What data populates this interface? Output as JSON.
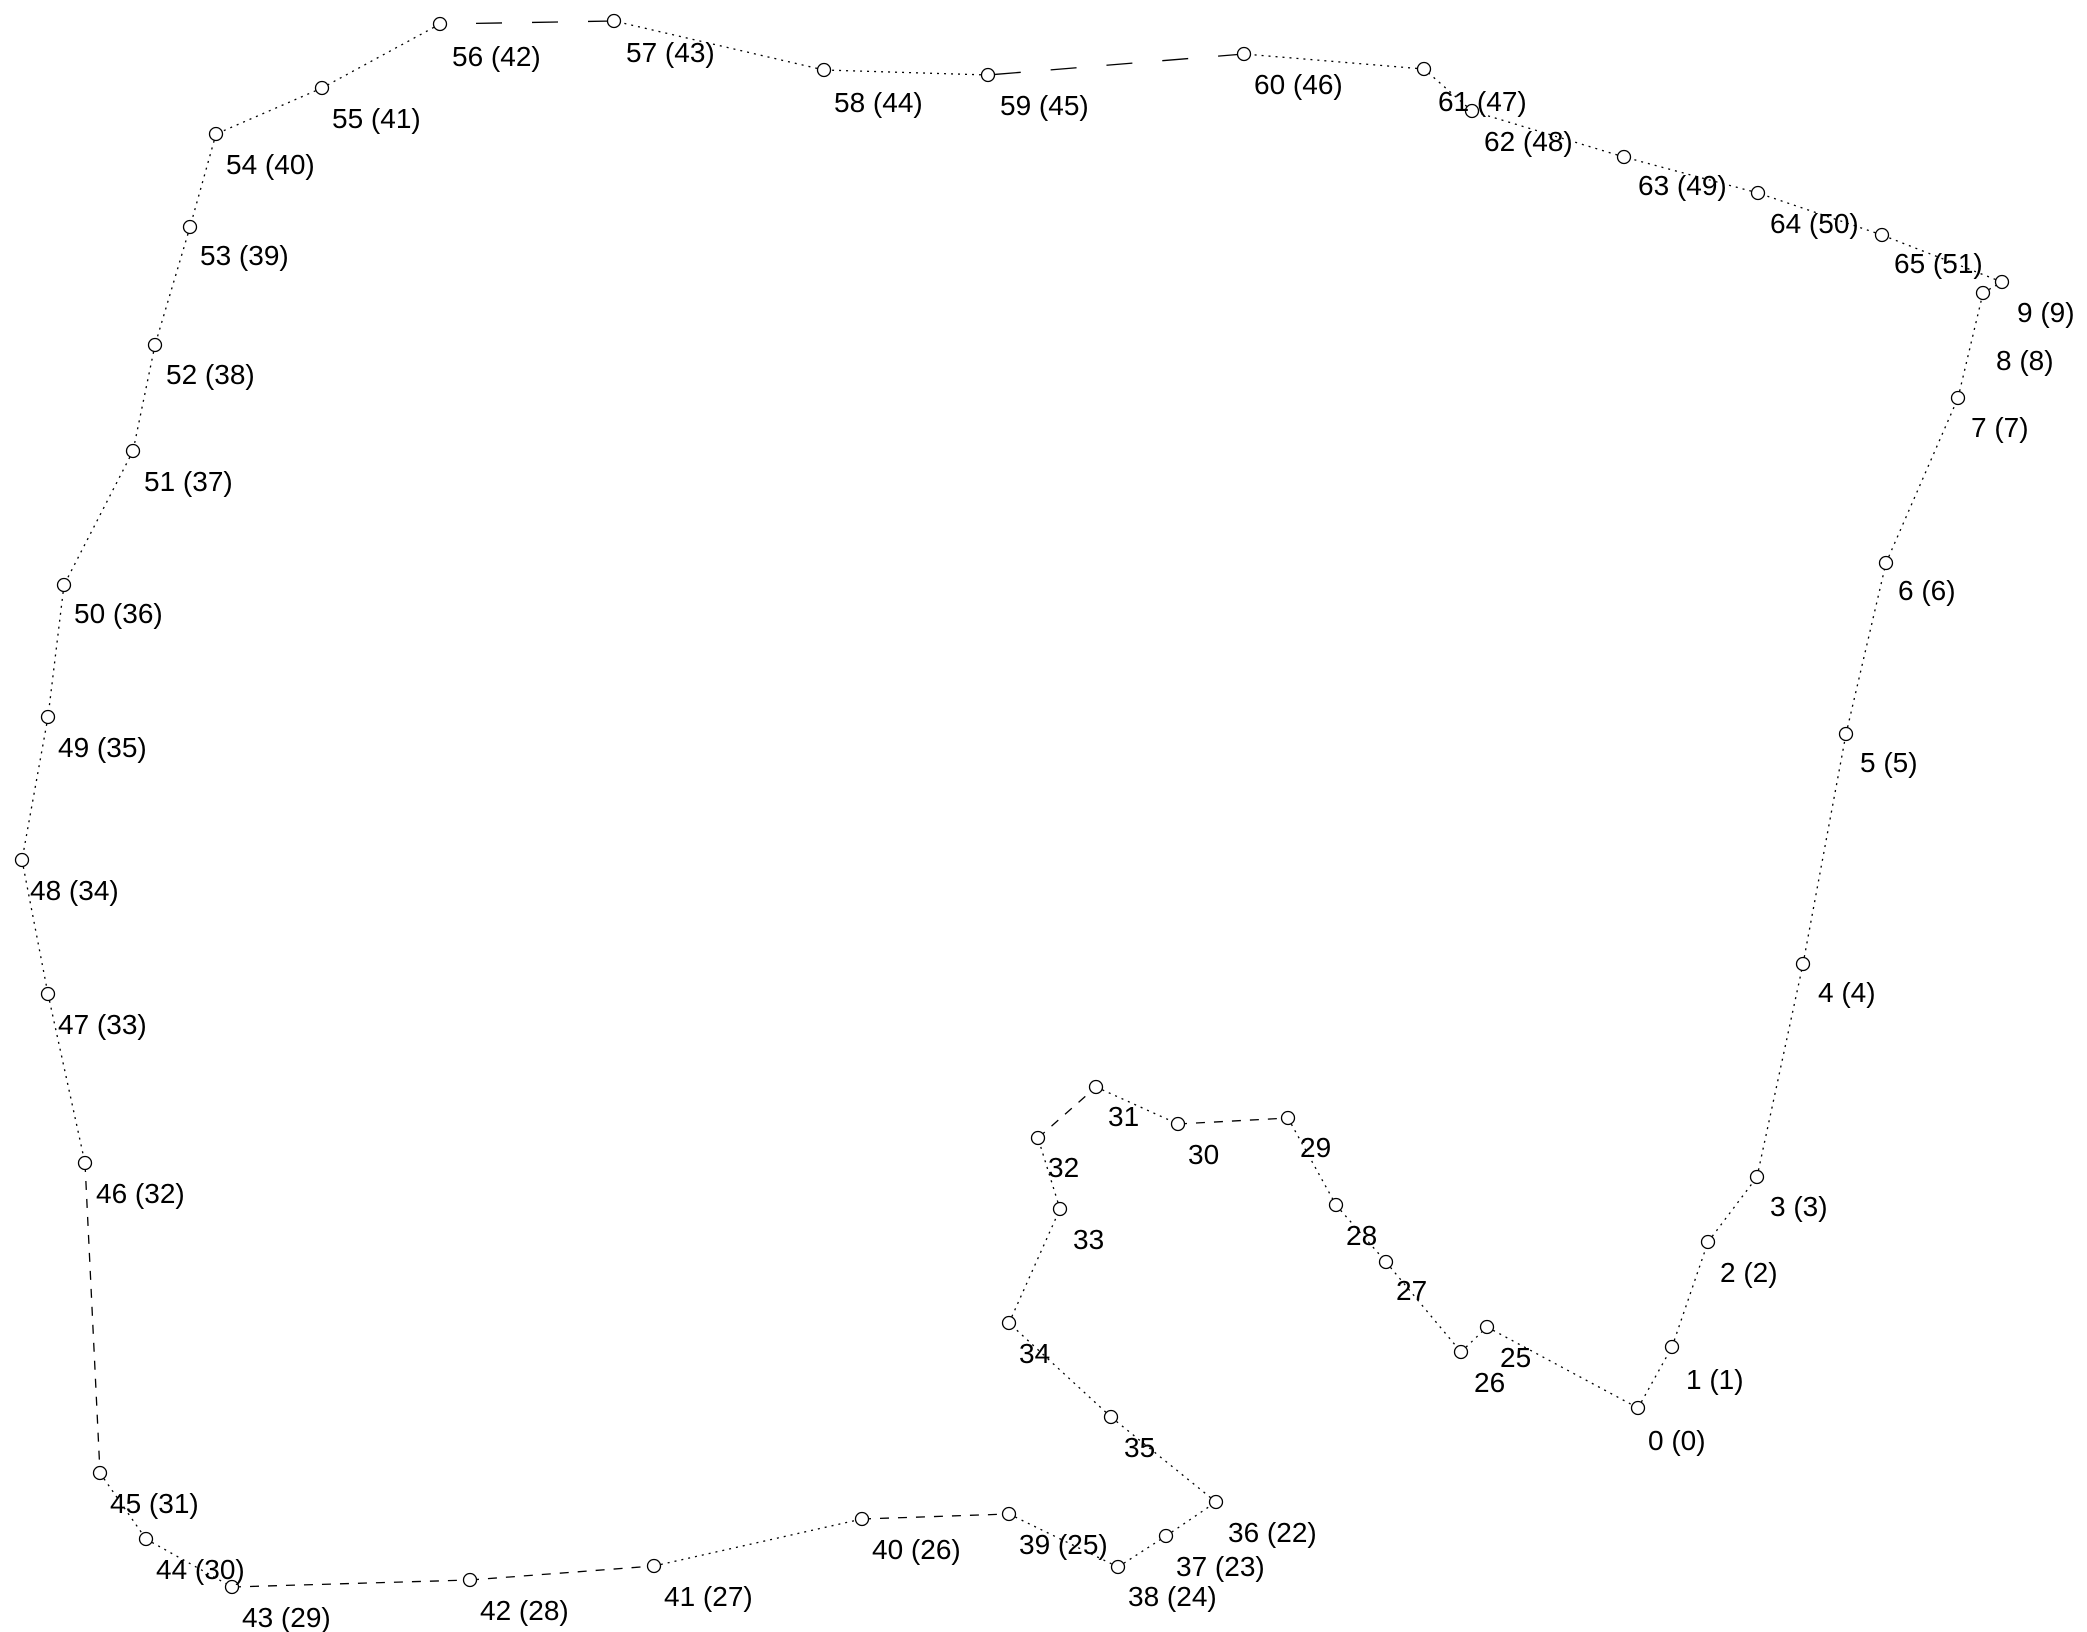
{
  "diagram": {
    "background": "#ffffff",
    "ink": "#000000",
    "points": [
      {
        "label": "0 (0)"
      },
      {
        "label": "1 (1)"
      },
      {
        "label": "2 (2)"
      },
      {
        "label": "3 (3)"
      },
      {
        "label": "4 (4)"
      },
      {
        "label": "5 (5)"
      },
      {
        "label": "6 (6)"
      },
      {
        "label": "7 (7)"
      },
      {
        "label": "8 (8)"
      },
      {
        "label": "9 (9)"
      },
      {
        "label": "65 (51)"
      },
      {
        "label": "64 (50)"
      },
      {
        "label": "63 (49)"
      },
      {
        "label": "62 (48)"
      },
      {
        "label": "61 (47)"
      },
      {
        "label": "60 (46)"
      },
      {
        "label": "59 (45)"
      },
      {
        "label": "58 (44)"
      },
      {
        "label": "57 (43)"
      },
      {
        "label": "56 (42)"
      },
      {
        "label": "55 (41)"
      },
      {
        "label": "54 (40)"
      },
      {
        "label": "53 (39)"
      },
      {
        "label": "52 (38)"
      },
      {
        "label": "51 (37)"
      },
      {
        "label": "50 (36)"
      },
      {
        "label": "49 (35)"
      },
      {
        "label": "48 (34)"
      },
      {
        "label": "47 (33)"
      },
      {
        "label": "46 (32)"
      },
      {
        "label": "45 (31)"
      },
      {
        "label": "44 (30)"
      },
      {
        "label": "43 (29)"
      },
      {
        "label": "42 (28)"
      },
      {
        "label": "41 (27)"
      },
      {
        "label": "40 (26)"
      },
      {
        "label": "39 (25)"
      },
      {
        "label": "38 (24)"
      },
      {
        "label": "37 (23)"
      },
      {
        "label": "36 (22)"
      },
      {
        "label": "35"
      },
      {
        "label": "34"
      },
      {
        "label": "33"
      },
      {
        "label": "32"
      },
      {
        "label": "31"
      },
      {
        "label": "30"
      },
      {
        "label": "29"
      },
      {
        "label": "28"
      },
      {
        "label": "27"
      },
      {
        "label": "26"
      },
      {
        "label": "25"
      }
    ],
    "segment_styles": [
      "dotted",
      "dotted",
      "dotted",
      "dotted",
      "dotted",
      "dotted",
      "dotted",
      "dotted",
      "dotted",
      "dotted",
      "dotted",
      "dotted",
      "dotted",
      "dotted",
      "dotted",
      "long-dash",
      "dotted",
      "dotted",
      "long-dash",
      "dotted",
      "dotted",
      "dotted",
      "dotted",
      "dotted",
      "dotted",
      "dotted",
      "dotted",
      "dotted",
      "dotted",
      "dashed",
      "dotted",
      "dotted",
      "dashed",
      "dashed",
      "dotted",
      "dashed",
      "dotted",
      "dotted",
      "dotted",
      "dotted",
      "dotted",
      "dotted",
      "dotted",
      "dashed",
      "dotted",
      "dashed",
      "dotted",
      "dotted",
      "dotted",
      "dotted",
      "dotted"
    ]
  }
}
